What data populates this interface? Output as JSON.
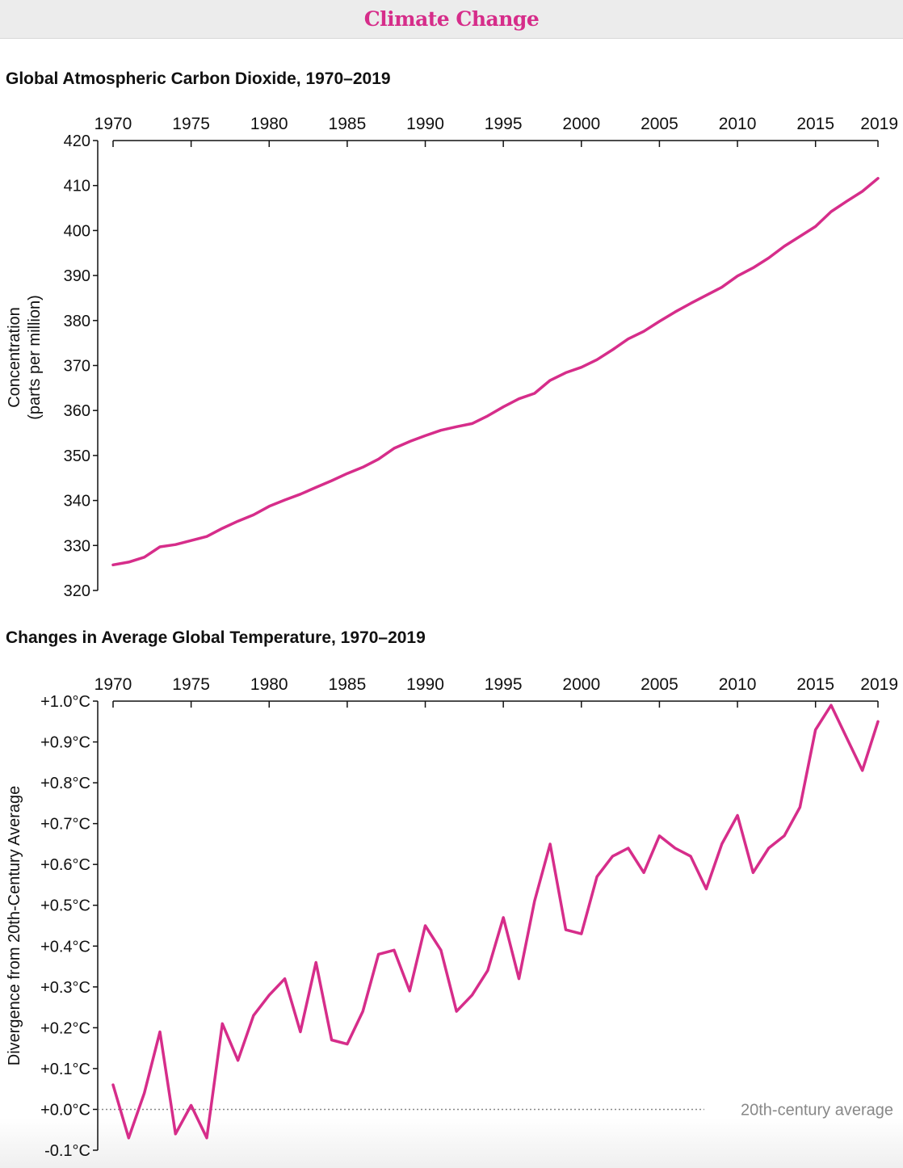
{
  "header": {
    "title": "Climate Change"
  },
  "colors": {
    "accent": "#d62d8a",
    "axis": "#111111",
    "reference": "#888888"
  },
  "chart_data": [
    {
      "type": "line",
      "title": "Global Atmospheric Carbon Dioxide, 1970–2019",
      "ylabel": [
        "Concentration",
        "(parts per million)"
      ],
      "xticks": [
        1970,
        1975,
        1980,
        1985,
        1990,
        1995,
        2000,
        2005,
        2010,
        2015,
        2019
      ],
      "yticks": [
        320,
        330,
        340,
        350,
        360,
        370,
        380,
        390,
        400,
        410,
        420
      ],
      "xlim": [
        1970,
        2019
      ],
      "ylim": [
        320,
        420
      ],
      "x": [
        1970,
        1971,
        1972,
        1973,
        1974,
        1975,
        1976,
        1977,
        1978,
        1979,
        1980,
        1981,
        1982,
        1983,
        1984,
        1985,
        1986,
        1987,
        1988,
        1989,
        1990,
        1991,
        1992,
        1993,
        1994,
        1995,
        1996,
        1997,
        1998,
        1999,
        2000,
        2001,
        2002,
        2003,
        2004,
        2005,
        2006,
        2007,
        2008,
        2009,
        2010,
        2011,
        2012,
        2013,
        2014,
        2015,
        2016,
        2017,
        2018,
        2019
      ],
      "values": [
        325.7,
        326.3,
        327.4,
        329.7,
        330.2,
        331.1,
        332.0,
        333.8,
        335.4,
        336.8,
        338.7,
        340.1,
        341.4,
        342.9,
        344.4,
        346.0,
        347.4,
        349.2,
        351.6,
        353.1,
        354.4,
        355.6,
        356.4,
        357.1,
        358.8,
        360.8,
        362.6,
        363.8,
        366.7,
        368.4,
        369.6,
        371.3,
        373.5,
        375.9,
        377.6,
        379.8,
        381.9,
        383.8,
        385.6,
        387.4,
        389.9,
        391.7,
        393.9,
        396.5,
        398.7,
        400.9,
        404.2,
        406.5,
        408.7,
        411.6
      ],
      "grid": false,
      "x_axis_position": "top"
    },
    {
      "type": "line",
      "title": "Changes in Average Global Temperature, 1970–2019",
      "ylabel": "Divergence from 20th-Century Average",
      "xticks": [
        1970,
        1975,
        1980,
        1985,
        1990,
        1995,
        2000,
        2005,
        2010,
        2015,
        2019
      ],
      "yticks": [
        -0.1,
        0.0,
        0.1,
        0.2,
        0.3,
        0.4,
        0.5,
        0.6,
        0.7,
        0.8,
        0.9,
        1.0
      ],
      "ytick_labels": [
        "-0.1°C",
        "+0.0°C",
        "+0.1°C",
        "+0.2°C",
        "+0.3°C",
        "+0.4°C",
        "+0.5°C",
        "+0.6°C",
        "+0.7°C",
        "+0.8°C",
        "+0.9°C",
        "+1.0°C"
      ],
      "xlim": [
        1970,
        2019
      ],
      "ylim": [
        -0.1,
        1.0
      ],
      "x": [
        1970,
        1971,
        1972,
        1973,
        1974,
        1975,
        1976,
        1977,
        1978,
        1979,
        1980,
        1981,
        1982,
        1983,
        1984,
        1985,
        1986,
        1987,
        1988,
        1989,
        1990,
        1991,
        1992,
        1993,
        1994,
        1995,
        1996,
        1997,
        1998,
        1999,
        2000,
        2001,
        2002,
        2003,
        2004,
        2005,
        2006,
        2007,
        2008,
        2009,
        2010,
        2011,
        2012,
        2013,
        2014,
        2015,
        2016,
        2017,
        2018,
        2019
      ],
      "values": [
        0.06,
        -0.07,
        0.04,
        0.19,
        -0.06,
        0.01,
        -0.07,
        0.21,
        0.12,
        0.23,
        0.28,
        0.32,
        0.19,
        0.36,
        0.17,
        0.16,
        0.24,
        0.38,
        0.39,
        0.29,
        0.45,
        0.39,
        0.24,
        0.28,
        0.34,
        0.47,
        0.32,
        0.51,
        0.65,
        0.44,
        0.43,
        0.57,
        0.62,
        0.64,
        0.58,
        0.67,
        0.64,
        0.62,
        0.54,
        0.65,
        0.72,
        0.58,
        0.64,
        0.67,
        0.74,
        0.93,
        0.99,
        0.91,
        0.83,
        0.95
      ],
      "reference_line": {
        "value": 0.0,
        "label": "20th-century average"
      },
      "grid": false,
      "x_axis_position": "top"
    }
  ]
}
